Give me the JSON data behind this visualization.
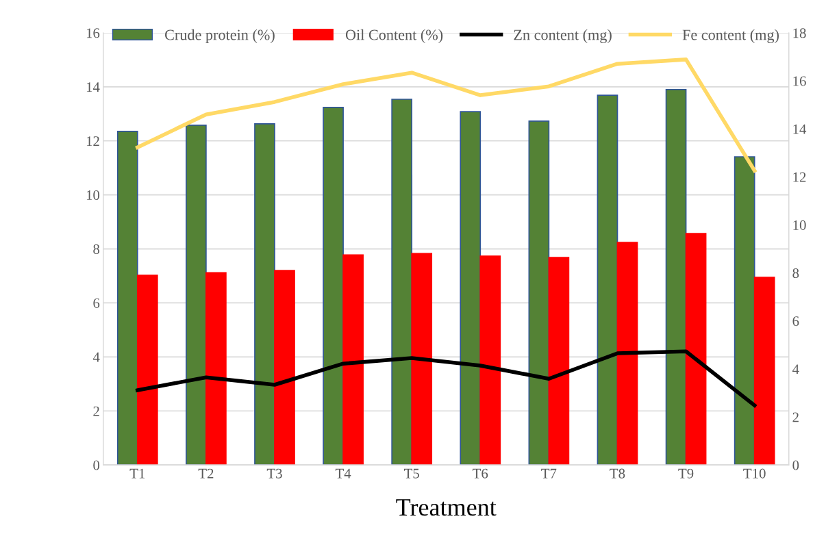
{
  "chart_data": {
    "type": "bar",
    "xlabel": "Treatment",
    "categories": [
      "T1",
      "T2",
      "T3",
      "T4",
      "T5",
      "T6",
      "T7",
      "T8",
      "T9",
      "T10"
    ],
    "series": [
      {
        "name": "Crude protein (%)",
        "color": "#548235",
        "values": [
          12.35,
          12.58,
          12.63,
          13.24,
          13.54,
          13.08,
          12.73,
          13.69,
          13.9,
          11.41
        ]
      },
      {
        "name": "Oil Content (%)",
        "color": "#ff0000",
        "values": [
          7.02,
          7.12,
          7.2,
          7.78,
          7.83,
          7.73,
          7.68,
          8.24,
          8.57,
          6.95
        ]
      },
      {
        "name": "Zn content (mg)",
        "type": "line",
        "axis": "y2",
        "color": "#000000",
        "values": [
          3.11,
          3.65,
          3.34,
          4.22,
          4.45,
          4.14,
          3.59,
          4.65,
          4.73,
          2.48
        ]
      },
      {
        "name": "Fe content (mg)",
        "type": "line",
        "axis": "y2",
        "color": "#ffd966",
        "values": [
          13.23,
          14.6,
          15.12,
          15.86,
          16.34,
          15.4,
          15.77,
          16.71,
          16.89,
          12.26
        ]
      }
    ],
    "ylim": [
      0,
      16
    ],
    "yticks": [
      0,
      2,
      4,
      6,
      8,
      10,
      12,
      14,
      16
    ],
    "y2lim": [
      0,
      18
    ],
    "y2ticks": [
      0,
      2,
      4,
      6,
      8,
      10,
      12,
      14,
      16,
      18
    ],
    "grid": "y",
    "legend": "top",
    "marker": "none",
    "line_style": "solid"
  }
}
